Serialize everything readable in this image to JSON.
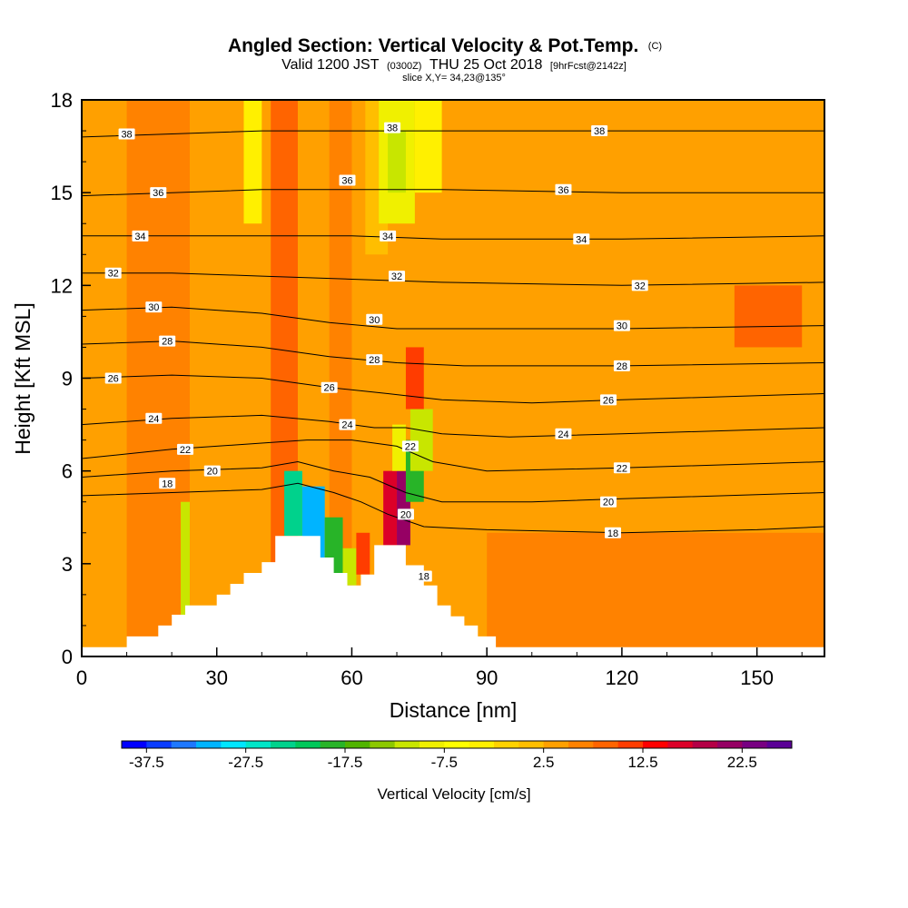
{
  "header": {
    "title": "Angled Section: Vertical Velocity & Pot.Temp.",
    "title_units": "(C)",
    "valid_prefix": "Valid 1200 JST",
    "valid_utc": "(0300Z)",
    "valid_date": "THU 25 Oct 2018",
    "forecast": "[9hrFcst@2142z]",
    "slice": "slice X,Y= 34,23@135°"
  },
  "chart_data": {
    "type": "heatmap",
    "xlabel": "Distance [nm]",
    "ylabel": "Height [Kft MSL]",
    "xlim": [
      0,
      165
    ],
    "ylim": [
      0,
      18
    ],
    "xticks": [
      0,
      30,
      60,
      90,
      120,
      150
    ],
    "yticks": [
      0,
      3,
      6,
      9,
      12,
      15,
      18
    ],
    "colorbar": {
      "label": "Vertical Velocity [cm/s]",
      "min": -40,
      "max": 27.5,
      "step": 2.5,
      "tick_values": [
        -37.5,
        -27.5,
        -17.5,
        -7.5,
        2.5,
        12.5,
        22.5
      ],
      "tick_labels": [
        "-37.5",
        "-27.5",
        "-17.5",
        "-7.5",
        "2.5",
        "12.5",
        "22.5"
      ],
      "colors": [
        "#0000ff",
        "#0a3cff",
        "#1e78ff",
        "#00b4ff",
        "#00e6ff",
        "#00e6c8",
        "#00d28c",
        "#00c85a",
        "#28b428",
        "#50b400",
        "#8cc800",
        "#c8e600",
        "#f0f000",
        "#ffff00",
        "#fff000",
        "#ffd200",
        "#ffbe00",
        "#ffa000",
        "#ff8200",
        "#ff6400",
        "#ff3c00",
        "#ff0000",
        "#dc0028",
        "#b40046",
        "#960064",
        "#780082",
        "#5a0096"
      ]
    },
    "background_color": "#ffd000",
    "terrain_profile": [
      [
        0,
        0.3
      ],
      [
        10,
        0.3
      ],
      [
        10,
        0.65
      ],
      [
        17,
        0.65
      ],
      [
        17,
        1.0
      ],
      [
        20,
        1.0
      ],
      [
        20,
        1.35
      ],
      [
        23,
        1.35
      ],
      [
        23,
        1.65
      ],
      [
        30,
        1.65
      ],
      [
        30,
        2.0
      ],
      [
        33,
        2.0
      ],
      [
        33,
        2.35
      ],
      [
        36,
        2.35
      ],
      [
        36,
        2.7
      ],
      [
        40,
        2.7
      ],
      [
        40,
        3.05
      ],
      [
        43,
        3.05
      ],
      [
        43,
        3.9
      ],
      [
        53,
        3.9
      ],
      [
        53,
        3.2
      ],
      [
        56,
        3.2
      ],
      [
        56,
        2.7
      ],
      [
        59,
        2.7
      ],
      [
        59,
        2.3
      ],
      [
        62,
        2.3
      ],
      [
        62,
        2.65
      ],
      [
        65,
        2.65
      ],
      [
        65,
        3.6
      ],
      [
        72,
        3.6
      ],
      [
        72,
        2.95
      ],
      [
        76,
        2.95
      ],
      [
        76,
        2.3
      ],
      [
        79,
        2.3
      ],
      [
        79,
        1.65
      ],
      [
        82,
        1.65
      ],
      [
        82,
        1.3
      ],
      [
        85,
        1.3
      ],
      [
        85,
        1.0
      ],
      [
        88,
        1.0
      ],
      [
        88,
        0.65
      ],
      [
        92,
        0.65
      ],
      [
        92,
        0.3
      ],
      [
        165,
        0.3
      ]
    ],
    "velocity_cells": [
      {
        "x": [
          0,
          165
        ],
        "y": [
          0,
          18
        ],
        "value": 3
      },
      {
        "x": [
          90,
          165
        ],
        "y": [
          0,
          4
        ],
        "value": 6
      },
      {
        "x": [
          10,
          24
        ],
        "y": [
          0,
          18
        ],
        "value": 5
      },
      {
        "x": [
          36,
          40
        ],
        "y": [
          14,
          18
        ],
        "value": -3
      },
      {
        "x": [
          42,
          48
        ],
        "y": [
          0,
          18
        ],
        "value": 8
      },
      {
        "x": [
          55,
          60
        ],
        "y": [
          0,
          18
        ],
        "value": 7
      },
      {
        "x": [
          63,
          68
        ],
        "y": [
          13,
          18
        ],
        "value": 0
      },
      {
        "x": [
          66,
          74
        ],
        "y": [
          14,
          18
        ],
        "value": -8
      },
      {
        "x": [
          68,
          72
        ],
        "y": [
          15,
          17
        ],
        "value": -12
      },
      {
        "x": [
          74,
          80
        ],
        "y": [
          15,
          18
        ],
        "value": -5
      },
      {
        "x": [
          145,
          160
        ],
        "y": [
          10,
          12
        ],
        "value": 8
      },
      {
        "x": [
          22,
          24
        ],
        "y": [
          1,
          5
        ],
        "value": -12
      },
      {
        "x": [
          45,
          49
        ],
        "y": [
          3.9,
          6
        ],
        "value": -25
      },
      {
        "x": [
          49,
          54
        ],
        "y": [
          3.2,
          5.5
        ],
        "value": -32
      },
      {
        "x": [
          54,
          58
        ],
        "y": [
          2.7,
          4.5
        ],
        "value": -20
      },
      {
        "x": [
          58,
          61
        ],
        "y": [
          2.3,
          3.5
        ],
        "value": -12
      },
      {
        "x": [
          67,
          70
        ],
        "y": [
          3.6,
          6
        ],
        "value": 15
      },
      {
        "x": [
          70,
          73
        ],
        "y": [
          3.6,
          6
        ],
        "value": 22
      },
      {
        "x": [
          69,
          72
        ],
        "y": [
          6,
          7.5
        ],
        "value": -10
      },
      {
        "x": [
          72,
          76
        ],
        "y": [
          5,
          7
        ],
        "value": -20
      },
      {
        "x": [
          73,
          78
        ],
        "y": [
          6,
          8
        ],
        "value": -12
      },
      {
        "x": [
          72,
          76
        ],
        "y": [
          8,
          10
        ],
        "value": 12
      },
      {
        "x": [
          61,
          64
        ],
        "y": [
          2.65,
          4
        ],
        "value": 12
      }
    ],
    "isotherms": [
      {
        "label": "18",
        "label_x": 20,
        "points": [
          [
            0,
            5.2
          ],
          [
            20,
            5.3
          ],
          [
            40,
            5.4
          ],
          [
            48,
            5.6
          ],
          [
            56,
            5.3
          ],
          [
            62,
            5.0
          ],
          [
            68,
            4.6
          ],
          [
            76,
            4.2
          ],
          [
            90,
            4.1
          ],
          [
            120,
            4.0
          ],
          [
            150,
            4.1
          ],
          [
            165,
            4.2
          ]
        ]
      },
      {
        "label": "20",
        "label_x": 30,
        "points": [
          [
            0,
            5.8
          ],
          [
            20,
            6.0
          ],
          [
            40,
            6.1
          ],
          [
            48,
            6.3
          ],
          [
            56,
            6.0
          ],
          [
            64,
            5.8
          ],
          [
            72,
            5.3
          ],
          [
            80,
            5.0
          ],
          [
            100,
            5.0
          ],
          [
            120,
            5.1
          ],
          [
            165,
            5.3
          ]
        ]
      },
      {
        "label": "22",
        "label_x": 24,
        "points": [
          [
            0,
            6.4
          ],
          [
            20,
            6.7
          ],
          [
            40,
            6.9
          ],
          [
            50,
            7.0
          ],
          [
            60,
            7.0
          ],
          [
            70,
            6.8
          ],
          [
            78,
            6.3
          ],
          [
            90,
            6.0
          ],
          [
            120,
            6.1
          ],
          [
            165,
            6.3
          ]
        ]
      },
      {
        "label": "24",
        "label_x": 16,
        "points": [
          [
            0,
            7.5
          ],
          [
            20,
            7.7
          ],
          [
            40,
            7.8
          ],
          [
            55,
            7.6
          ],
          [
            65,
            7.4
          ],
          [
            72,
            7.4
          ],
          [
            80,
            7.2
          ],
          [
            95,
            7.1
          ],
          [
            120,
            7.2
          ],
          [
            165,
            7.4
          ]
        ]
      },
      {
        "label": "26",
        "label_x": 6,
        "points": [
          [
            0,
            9.0
          ],
          [
            20,
            9.1
          ],
          [
            40,
            9.0
          ],
          [
            55,
            8.7
          ],
          [
            68,
            8.5
          ],
          [
            80,
            8.3
          ],
          [
            100,
            8.2
          ],
          [
            120,
            8.3
          ],
          [
            165,
            8.5
          ]
        ]
      },
      {
        "label": "28",
        "label_x": 20,
        "points": [
          [
            0,
            10.1
          ],
          [
            20,
            10.2
          ],
          [
            40,
            10.0
          ],
          [
            55,
            9.7
          ],
          [
            70,
            9.5
          ],
          [
            85,
            9.4
          ],
          [
            120,
            9.4
          ],
          [
            165,
            9.5
          ]
        ]
      },
      {
        "label": "30",
        "label_x": 16,
        "points": [
          [
            0,
            11.2
          ],
          [
            20,
            11.3
          ],
          [
            40,
            11.1
          ],
          [
            55,
            10.8
          ],
          [
            70,
            10.6
          ],
          [
            90,
            10.6
          ],
          [
            120,
            10.6
          ],
          [
            165,
            10.7
          ]
        ]
      },
      {
        "label": "32",
        "label_x": 7,
        "points": [
          [
            0,
            12.4
          ],
          [
            20,
            12.4
          ],
          [
            40,
            12.3
          ],
          [
            60,
            12.2
          ],
          [
            80,
            12.1
          ],
          [
            120,
            12.0
          ],
          [
            165,
            12.1
          ]
        ]
      },
      {
        "label": "34",
        "label_x": 13,
        "points": [
          [
            0,
            13.6
          ],
          [
            20,
            13.6
          ],
          [
            40,
            13.6
          ],
          [
            60,
            13.6
          ],
          [
            80,
            13.5
          ],
          [
            120,
            13.5
          ],
          [
            165,
            13.6
          ]
        ]
      },
      {
        "label": "36",
        "label_x": 17,
        "points": [
          [
            0,
            14.9
          ],
          [
            20,
            15.0
          ],
          [
            40,
            15.1
          ],
          [
            60,
            15.1
          ],
          [
            80,
            15.1
          ],
          [
            120,
            15.0
          ],
          [
            165,
            15.0
          ]
        ]
      },
      {
        "label": "38",
        "label_x": 10,
        "points": [
          [
            0,
            16.8
          ],
          [
            20,
            16.9
          ],
          [
            40,
            17.0
          ],
          [
            60,
            17.0
          ],
          [
            80,
            17.0
          ],
          [
            120,
            17.0
          ],
          [
            165,
            17.0
          ]
        ]
      }
    ],
    "isotherm_labels": [
      {
        "text": "18",
        "x": 19,
        "y": 5.6
      },
      {
        "text": "18",
        "x": 118,
        "y": 4.0
      },
      {
        "text": "18",
        "x": 76,
        "y": 2.6
      },
      {
        "text": "20",
        "x": 29,
        "y": 6.0
      },
      {
        "text": "20",
        "x": 117,
        "y": 5.0
      },
      {
        "text": "20",
        "x": 72,
        "y": 4.6
      },
      {
        "text": "22",
        "x": 23,
        "y": 6.7
      },
      {
        "text": "22",
        "x": 120,
        "y": 6.1
      },
      {
        "text": "22",
        "x": 73,
        "y": 6.8
      },
      {
        "text": "24",
        "x": 16,
        "y": 7.7
      },
      {
        "text": "24",
        "x": 59,
        "y": 7.5
      },
      {
        "text": "24",
        "x": 107,
        "y": 7.2
      },
      {
        "text": "26",
        "x": 7,
        "y": 9.0
      },
      {
        "text": "26",
        "x": 55,
        "y": 8.7
      },
      {
        "text": "26",
        "x": 117,
        "y": 8.3
      },
      {
        "text": "28",
        "x": 19,
        "y": 10.2
      },
      {
        "text": "28",
        "x": 65,
        "y": 9.6
      },
      {
        "text": "28",
        "x": 120,
        "y": 9.4
      },
      {
        "text": "30",
        "x": 16,
        "y": 11.3
      },
      {
        "text": "30",
        "x": 65,
        "y": 10.9
      },
      {
        "text": "30",
        "x": 120,
        "y": 10.7
      },
      {
        "text": "32",
        "x": 7,
        "y": 12.4
      },
      {
        "text": "32",
        "x": 70,
        "y": 12.3
      },
      {
        "text": "32",
        "x": 124,
        "y": 12.0
      },
      {
        "text": "34",
        "x": 13,
        "y": 13.6
      },
      {
        "text": "34",
        "x": 68,
        "y": 13.6
      },
      {
        "text": "34",
        "x": 111,
        "y": 13.5
      },
      {
        "text": "36",
        "x": 17,
        "y": 15.0
      },
      {
        "text": "36",
        "x": 59,
        "y": 15.4
      },
      {
        "text": "36",
        "x": 107,
        "y": 15.1
      },
      {
        "text": "38",
        "x": 10,
        "y": 16.9
      },
      {
        "text": "38",
        "x": 69,
        "y": 17.1
      },
      {
        "text": "38",
        "x": 115,
        "y": 17.0
      }
    ]
  }
}
